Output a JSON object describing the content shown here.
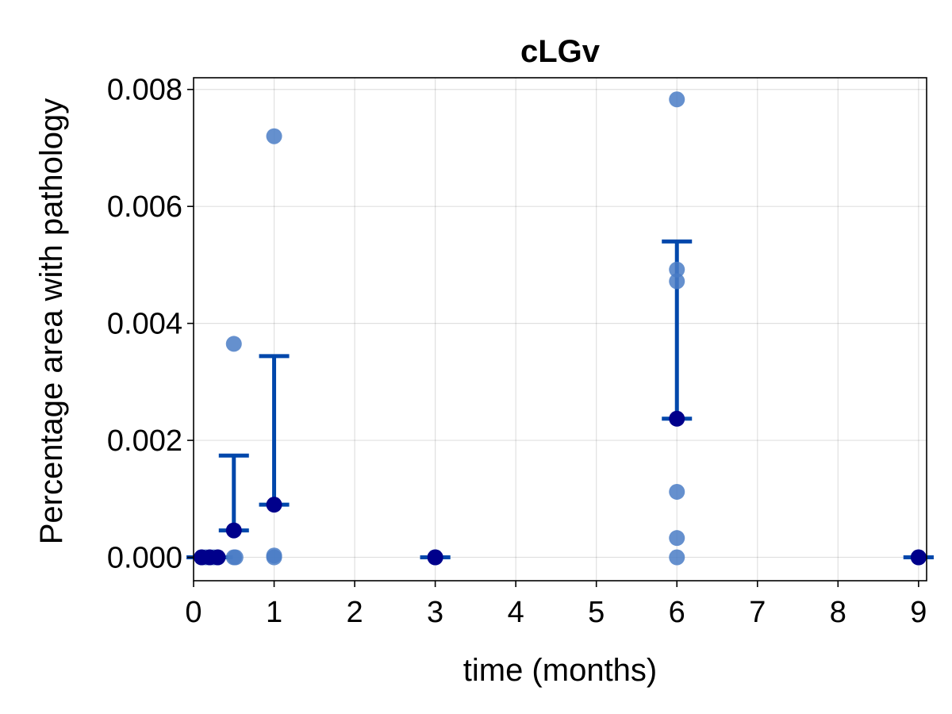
{
  "chart_data": {
    "type": "scatter",
    "title": "cLGv",
    "xlabel": "time (months)",
    "ylabel": "Percentage area with pathology",
    "xlim": [
      0,
      9.1
    ],
    "ylim": [
      -0.0004,
      0.0082
    ],
    "xticks": [
      0,
      1,
      2,
      3,
      4,
      5,
      6,
      7,
      8,
      9
    ],
    "xtick_labels": [
      "0",
      "1",
      "2",
      "3",
      "4",
      "5",
      "6",
      "7",
      "8",
      "9"
    ],
    "yticks": [
      0.0,
      0.002,
      0.004,
      0.006,
      0.008
    ],
    "ytick_labels": [
      "0.000",
      "0.002",
      "0.004",
      "0.006",
      "0.008"
    ],
    "grid": true,
    "legend": "none",
    "colors": {
      "points": "#4a7cc5",
      "mean": "#00008b",
      "errorbar": "#0047ab"
    },
    "series": [
      {
        "kind": "individual",
        "points": [
          {
            "x": 0.1,
            "y": 0.0
          },
          {
            "x": 0.15,
            "y": 0.0
          },
          {
            "x": 0.2,
            "y": 0.0
          },
          {
            "x": 0.25,
            "y": 0.0
          },
          {
            "x": 0.3,
            "y": 0.0
          },
          {
            "x": 0.5,
            "y": 0.00365
          },
          {
            "x": 0.5,
            "y": 0.0
          },
          {
            "x": 0.52,
            "y": 0.0
          },
          {
            "x": 1,
            "y": 0.0072
          },
          {
            "x": 1,
            "y": 3e-05
          },
          {
            "x": 1,
            "y": 0.0
          },
          {
            "x": 3,
            "y": 0.0
          },
          {
            "x": 3,
            "y": 0.0
          },
          {
            "x": 6,
            "y": 0.00783
          },
          {
            "x": 6,
            "y": 0.00492
          },
          {
            "x": 6,
            "y": 0.00472
          },
          {
            "x": 6,
            "y": 0.00112
          },
          {
            "x": 6,
            "y": 0.00033
          },
          {
            "x": 6,
            "y": 0.0
          },
          {
            "x": 9,
            "y": 0.0
          }
        ]
      },
      {
        "kind": "mean_with_errorbars",
        "points": [
          {
            "x": 0.1,
            "mean": 0.0,
            "lower": 0.0,
            "upper": 0.0
          },
          {
            "x": 0.2,
            "mean": 0.0,
            "lower": 0.0,
            "upper": 0.0
          },
          {
            "x": 0.3,
            "mean": 0.0,
            "lower": 0.0,
            "upper": 0.0
          },
          {
            "x": 0.5,
            "mean": 0.00046,
            "lower": 0.00046,
            "upper": 0.00174
          },
          {
            "x": 1,
            "mean": 0.0009,
            "lower": 0.0009,
            "upper": 0.00344
          },
          {
            "x": 3,
            "mean": 0.0,
            "lower": 0.0,
            "upper": 0.0
          },
          {
            "x": 6,
            "mean": 0.00237,
            "lower": 0.00237,
            "upper": 0.0054
          },
          {
            "x": 9,
            "mean": 0.0,
            "lower": 0.0,
            "upper": 0.0
          }
        ]
      }
    ]
  }
}
